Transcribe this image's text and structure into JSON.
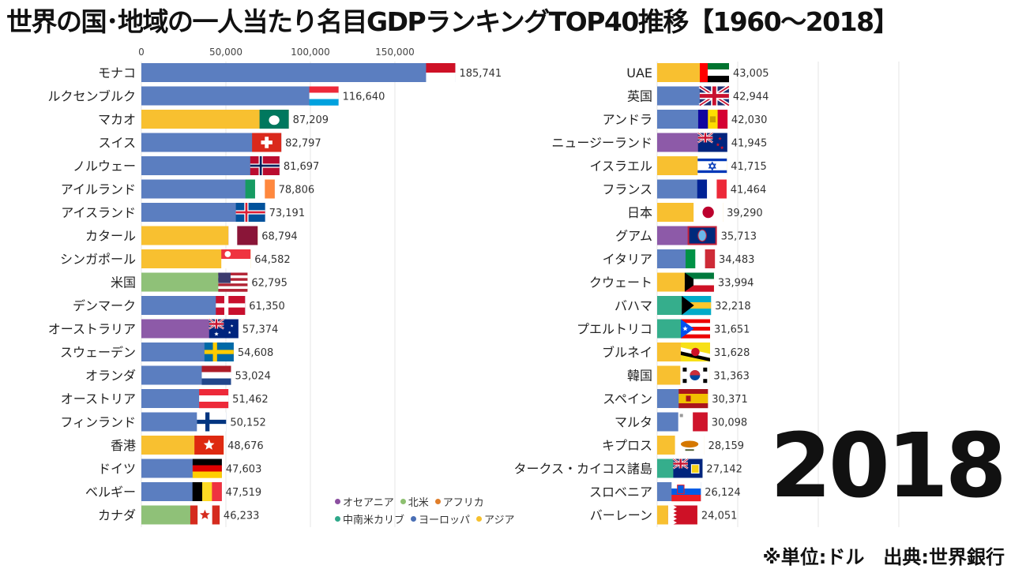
{
  "title": "世界の国･地域の一人当たり名目GDPランキングTOP40推移【1960～2018】",
  "year": "2018",
  "source": "※単位:ドル　出典:世界銀行",
  "legend": [
    {
      "name": "オセアニア",
      "color": "#8b4fa0"
    },
    {
      "name": "北米",
      "color": "#8dc070"
    },
    {
      "name": "アフリカ",
      "color": "#e07e2a"
    },
    {
      "name": "中南米カリブ",
      "color": "#2fa88a"
    },
    {
      "name": "ヨーロッパ",
      "color": "#4a6fb5"
    },
    {
      "name": "アジア",
      "color": "#f6c02d"
    }
  ],
  "colors": {
    "europe": "#5b7ec0",
    "asia": "#f8c030",
    "north_america": "#8fc178",
    "oceania": "#8d5aa8",
    "latam": "#35ae8c",
    "africa": "#e3802d"
  },
  "chart_data": {
    "type": "bar",
    "title": "世界の国･地域の一人当たり名目GDPランキングTOP40推移【1960～2018】",
    "xlim": [
      0,
      200000
    ],
    "x_ticks": [
      "0",
      "50,000",
      "100,000",
      "150,000"
    ],
    "x_tick_values": [
      0,
      50000,
      100000,
      150000
    ],
    "series": [
      {
        "name": "left",
        "bars": [
          {
            "label": "モナコ",
            "value": 185741,
            "value_label": "185,741",
            "region": "europe",
            "flag": "monaco"
          },
          {
            "label": "ルクセンブルク",
            "value": 116640,
            "value_label": "116,640",
            "region": "europe",
            "flag": "luxembourg"
          },
          {
            "label": "マカオ",
            "value": 87209,
            "value_label": "87,209",
            "region": "asia",
            "flag": "macau"
          },
          {
            "label": "スイス",
            "value": 82797,
            "value_label": "82,797",
            "region": "europe",
            "flag": "switzerland"
          },
          {
            "label": "ノルウェー",
            "value": 81697,
            "value_label": "81,697",
            "region": "europe",
            "flag": "norway"
          },
          {
            "label": "アイルランド",
            "value": 78806,
            "value_label": "78,806",
            "region": "europe",
            "flag": "ireland"
          },
          {
            "label": "アイスランド",
            "value": 73191,
            "value_label": "73,191",
            "region": "europe",
            "flag": "iceland"
          },
          {
            "label": "カタール",
            "value": 68794,
            "value_label": "68,794",
            "region": "asia",
            "flag": "qatar"
          },
          {
            "label": "シンガポール",
            "value": 64582,
            "value_label": "64,582",
            "region": "asia",
            "flag": "singapore"
          },
          {
            "label": "米国",
            "value": 62795,
            "value_label": "62,795",
            "region": "north_america",
            "flag": "usa"
          },
          {
            "label": "デンマーク",
            "value": 61350,
            "value_label": "61,350",
            "region": "europe",
            "flag": "denmark"
          },
          {
            "label": "オーストラリア",
            "value": 57374,
            "value_label": "57,374",
            "region": "oceania",
            "flag": "australia"
          },
          {
            "label": "スウェーデン",
            "value": 54608,
            "value_label": "54,608",
            "region": "europe",
            "flag": "sweden"
          },
          {
            "label": "オランダ",
            "value": 53024,
            "value_label": "53,024",
            "region": "europe",
            "flag": "netherlands"
          },
          {
            "label": "オーストリア",
            "value": 51462,
            "value_label": "51,462",
            "region": "europe",
            "flag": "austria"
          },
          {
            "label": "フィンランド",
            "value": 50152,
            "value_label": "50,152",
            "region": "europe",
            "flag": "finland"
          },
          {
            "label": "香港",
            "value": 48676,
            "value_label": "48,676",
            "region": "asia",
            "flag": "hongkong"
          },
          {
            "label": "ドイツ",
            "value": 47603,
            "value_label": "47,603",
            "region": "europe",
            "flag": "germany"
          },
          {
            "label": "ベルギー",
            "value": 47519,
            "value_label": "47,519",
            "region": "europe",
            "flag": "belgium"
          },
          {
            "label": "カナダ",
            "value": 46233,
            "value_label": "46,233",
            "region": "north_america",
            "flag": "canada"
          }
        ]
      },
      {
        "name": "right",
        "bars": [
          {
            "label": "UAE",
            "value": 43005,
            "value_label": "43,005",
            "region": "asia",
            "flag": "uae"
          },
          {
            "label": "英国",
            "value": 42944,
            "value_label": "42,944",
            "region": "europe",
            "flag": "uk"
          },
          {
            "label": "アンドラ",
            "value": 42030,
            "value_label": "42,030",
            "region": "europe",
            "flag": "andorra"
          },
          {
            "label": "ニュージーランド",
            "value": 41945,
            "value_label": "41,945",
            "region": "oceania",
            "flag": "newzealand"
          },
          {
            "label": "イスラエル",
            "value": 41715,
            "value_label": "41,715",
            "region": "asia",
            "flag": "israel"
          },
          {
            "label": "フランス",
            "value": 41464,
            "value_label": "41,464",
            "region": "europe",
            "flag": "france"
          },
          {
            "label": "日本",
            "value": 39290,
            "value_label": "39,290",
            "region": "asia",
            "flag": "japan"
          },
          {
            "label": "グアム",
            "value": 35713,
            "value_label": "35,713",
            "region": "oceania",
            "flag": "guam"
          },
          {
            "label": "イタリア",
            "value": 34483,
            "value_label": "34,483",
            "region": "europe",
            "flag": "italy"
          },
          {
            "label": "クウェート",
            "value": 33994,
            "value_label": "33,994",
            "region": "asia",
            "flag": "kuwait"
          },
          {
            "label": "バハマ",
            "value": 32218,
            "value_label": "32,218",
            "region": "latam",
            "flag": "bahamas"
          },
          {
            "label": "プエルトリコ",
            "value": 31651,
            "value_label": "31,651",
            "region": "latam",
            "flag": "puertorico"
          },
          {
            "label": "ブルネイ",
            "value": 31628,
            "value_label": "31,628",
            "region": "asia",
            "flag": "brunei"
          },
          {
            "label": "韓国",
            "value": 31363,
            "value_label": "31,363",
            "region": "asia",
            "flag": "korea"
          },
          {
            "label": "スペイン",
            "value": 30371,
            "value_label": "30,371",
            "region": "europe",
            "flag": "spain"
          },
          {
            "label": "マルタ",
            "value": 30098,
            "value_label": "30,098",
            "region": "europe",
            "flag": "malta"
          },
          {
            "label": "キプロス",
            "value": 28159,
            "value_label": "28,159",
            "region": "asia",
            "flag": "cyprus"
          },
          {
            "label": "タークス・カイコス諸島",
            "value": 27142,
            "value_label": "27,142",
            "region": "latam",
            "flag": "turkscaicos"
          },
          {
            "label": "スロベニア",
            "value": 26124,
            "value_label": "26,124",
            "region": "europe",
            "flag": "slovenia"
          },
          {
            "label": "バーレーン",
            "value": 24051,
            "value_label": "24,051",
            "region": "asia",
            "flag": "bahrain"
          }
        ]
      }
    ]
  }
}
